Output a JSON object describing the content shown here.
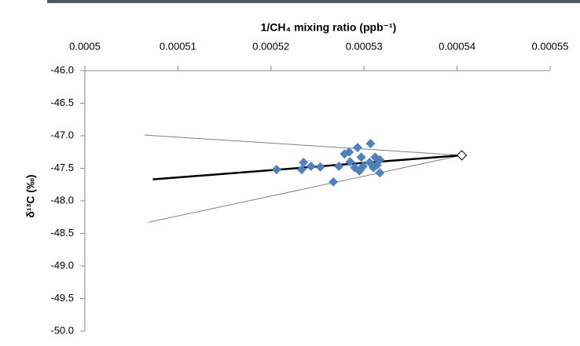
{
  "chart_data": {
    "type": "scatter",
    "title": "1/CH₄ mixing ratio (ppb⁻¹)",
    "y_label": "δ¹³C (‰)",
    "xlim": [
      0.0005,
      0.00055
    ],
    "xticks": [
      0.0005,
      0.00051,
      0.00052,
      0.00053,
      0.00054,
      0.00055
    ],
    "ylim": [
      -50,
      -46
    ],
    "yticks": [
      {
        "value": -46,
        "label": "-46.0"
      },
      {
        "value": -46.5,
        "label": "-46.5"
      },
      {
        "value": -47,
        "label": "-47.0"
      },
      {
        "value": -47.5,
        "label": "-47.5"
      },
      {
        "value": -48,
        "label": "-48.0"
      },
      {
        "value": -48.5,
        "label": "-48.5"
      },
      {
        "value": -49,
        "label": "-49.0"
      },
      {
        "value": -49.5,
        "label": "-49.5"
      },
      {
        "value": -50,
        "label": "-50.0"
      }
    ],
    "series": [
      {
        "color": "#808080",
        "marker": null,
        "x": [
          0.0005064,
          0.0005405
        ],
        "values": [
          -46.99,
          -47.3
        ]
      },
      {
        "color": "#808080",
        "marker": null,
        "x": [
          0.0005068,
          0.0005405
        ],
        "values": [
          -48.33,
          -47.3
        ]
      },
      {
        "color": "#000000",
        "marker": null,
        "x": [
          0.0005073,
          0.0005405
        ],
        "values": [
          -47.67,
          -47.3
        ]
      },
      {
        "color": "#4f81bd",
        "marker": "diamond",
        "x": [
          0.0005206,
          0.0005233,
          0.0005235,
          0.0005243,
          0.0005253,
          0.0005267,
          0.0005273,
          0.0005279,
          0.0005284,
          0.0005285,
          0.000529,
          0.0005293,
          0.0005295,
          0.0005297,
          0.0005299,
          0.0005306,
          0.0005307,
          0.000531,
          0.0005312,
          0.0005314,
          0.0005317,
          0.0005317
        ],
        "values": [
          -47.52,
          -47.52,
          -47.41,
          -47.47,
          -47.48,
          -47.71,
          -47.47,
          -47.28,
          -47.25,
          -47.4,
          -47.49,
          -47.18,
          -47.54,
          -47.33,
          -47.47,
          -47.41,
          -47.12,
          -47.49,
          -47.33,
          -47.45,
          -47.57,
          -47.37
        ]
      },
      {
        "color": "#000000",
        "marker": "open-diamond",
        "x": [
          0.0005405
        ],
        "values": [
          -47.3
        ]
      }
    ]
  }
}
